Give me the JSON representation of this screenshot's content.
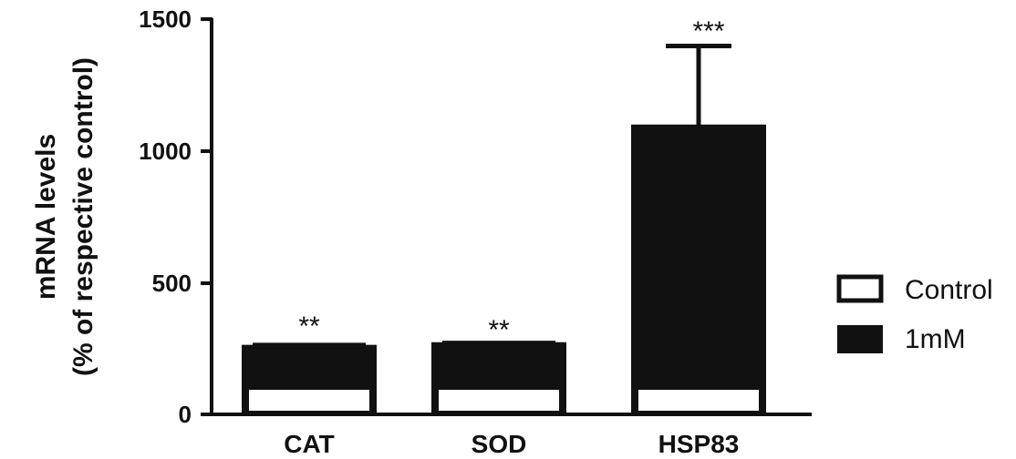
{
  "chart_data": {
    "type": "bar",
    "ylabel": "mRNA levels",
    "ylabel2": "(% of respective control)",
    "xlabel": "",
    "ylim": [
      0,
      1500
    ],
    "yticks": [
      0,
      500,
      1000,
      1500
    ],
    "categories": [
      "CAT",
      "SOD",
      "HSP83"
    ],
    "stacked": true,
    "legend_position": "right",
    "series": [
      {
        "name": "Control",
        "values": [
          100,
          100,
          100
        ],
        "color": "#ffffff"
      },
      {
        "name": "1mM",
        "values": [
          257,
          267,
          1093
        ],
        "errors": [
          6,
          4,
          305
        ],
        "color": "#111111"
      }
    ],
    "annotations": [
      "**",
      "**",
      "***"
    ]
  }
}
